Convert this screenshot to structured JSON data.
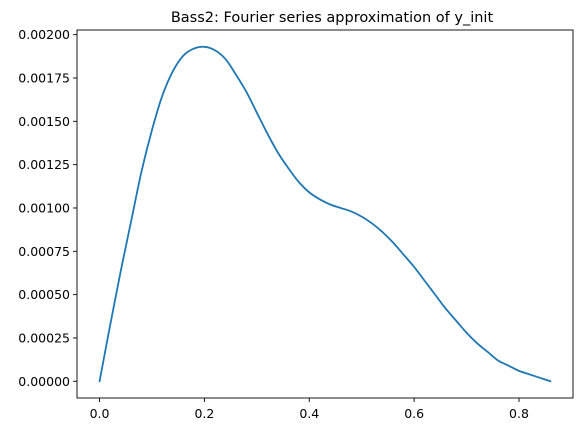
{
  "chart_data": {
    "type": "line",
    "title": "Bass2: Fourier series approximation of y_init",
    "xlabel": "",
    "ylabel": "",
    "xlim": [
      -0.043,
      0.903
    ],
    "ylim": [
      -9.65e-05,
      0.002027
    ],
    "x_ticks": [
      0.0,
      0.2,
      0.4,
      0.6,
      0.8
    ],
    "x_tick_labels": [
      "0.0",
      "0.2",
      "0.4",
      "0.6",
      "0.8"
    ],
    "y_ticks": [
      0.0,
      0.00025,
      0.0005,
      0.00075,
      0.001,
      0.00125,
      0.0015,
      0.00175,
      0.002
    ],
    "y_tick_labels": [
      "0.00000",
      "0.00025",
      "0.00050",
      "0.00075",
      "0.00100",
      "0.00125",
      "0.00150",
      "0.00175",
      "0.00200"
    ],
    "grid": false,
    "legend": "none",
    "series": [
      {
        "color": "#1f77b4",
        "x": [
          0.0,
          0.02,
          0.04,
          0.06,
          0.08,
          0.1,
          0.12,
          0.14,
          0.16,
          0.18,
          0.2,
          0.22,
          0.24,
          0.26,
          0.28,
          0.3,
          0.32,
          0.34,
          0.36,
          0.38,
          0.4,
          0.42,
          0.44,
          0.46,
          0.48,
          0.5,
          0.52,
          0.54,
          0.56,
          0.58,
          0.6,
          0.62,
          0.64,
          0.66,
          0.68,
          0.7,
          0.72,
          0.74,
          0.76,
          0.78,
          0.8,
          0.82,
          0.84,
          0.86
        ],
        "y": [
          0.0,
          0.00032,
          0.00063,
          0.00092,
          0.00121,
          0.00145,
          0.00165,
          0.00179,
          0.00188,
          0.00192,
          0.00193,
          0.00191,
          0.00186,
          0.00177,
          0.00167,
          0.00155,
          0.00143,
          0.00132,
          0.00123,
          0.00115,
          0.00109,
          0.00105,
          0.00102,
          0.001,
          0.00098,
          0.00095,
          0.00091,
          0.00086,
          0.0008,
          0.00073,
          0.00066,
          0.00058,
          0.0005,
          0.00042,
          0.00035,
          0.00028,
          0.00022,
          0.00017,
          0.00012,
          9e-05,
          6e-05,
          4e-05,
          2e-05,
          0.0
        ]
      }
    ]
  }
}
